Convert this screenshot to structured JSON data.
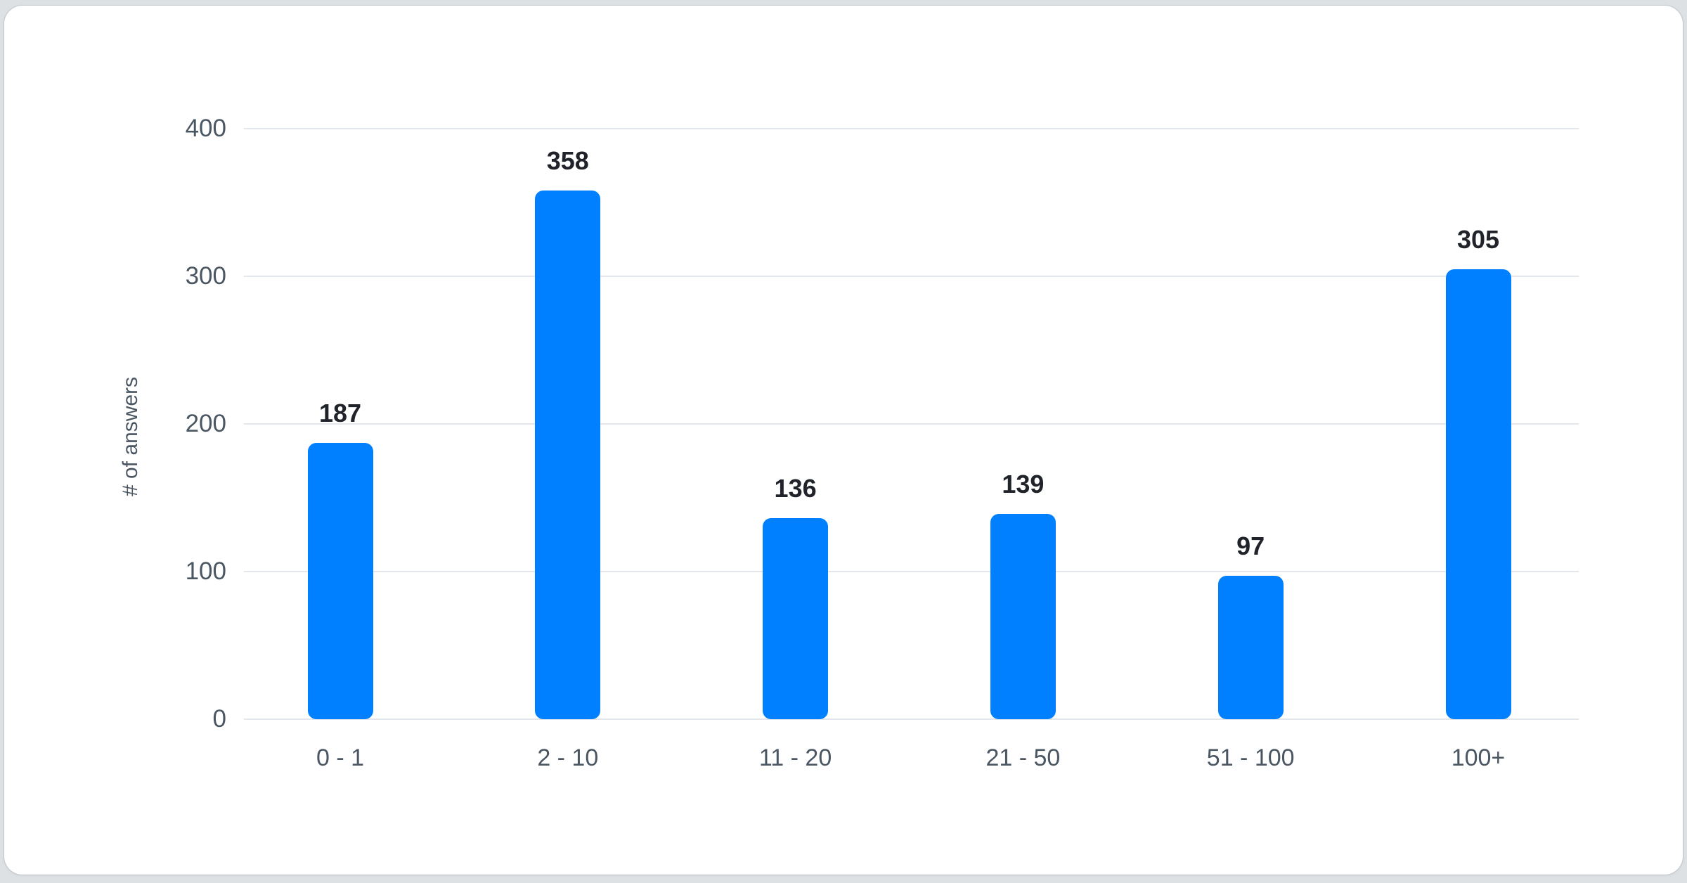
{
  "chart_data": {
    "type": "bar",
    "title": "",
    "xlabel": "",
    "ylabel": "# of answers",
    "categories": [
      "0 - 1",
      "2 - 10",
      "11 - 20",
      "21 - 50",
      "51 - 100",
      "100+"
    ],
    "values": [
      187,
      358,
      136,
      139,
      97,
      305
    ],
    "yticks": [
      0,
      100,
      200,
      300,
      400
    ],
    "ylim": [
      0,
      400
    ],
    "grid": true,
    "legend": false,
    "bar_color": "#0080FF"
  },
  "colors": {
    "bar": "#0080FF",
    "axis_text": "#4b5663",
    "value_label_text": "#20242a",
    "gridline": "#e3e6ea",
    "card_background": "#ffffff",
    "page_background": "#dde1e4"
  }
}
